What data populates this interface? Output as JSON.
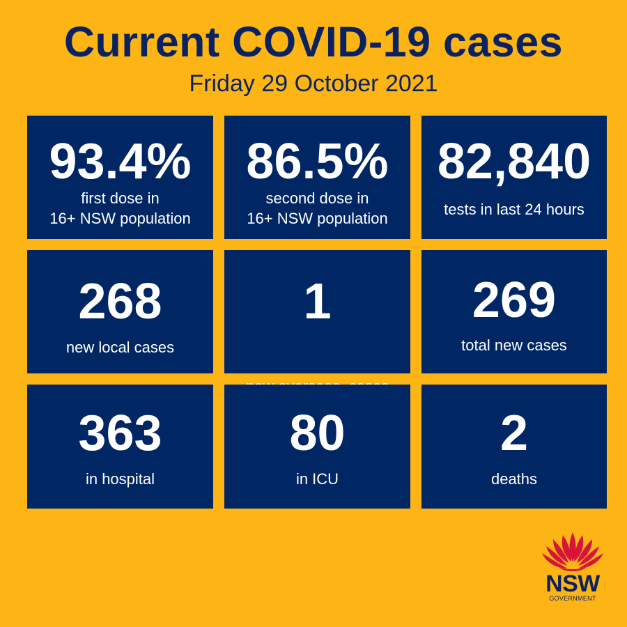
{
  "header": {
    "title": "Current COVID-19 cases",
    "date": "Friday 29 October 2021"
  },
  "colors": {
    "background": "#fdb515",
    "tile": "#002664",
    "text_dark": "#0b2261",
    "logo_red": "#d7153a"
  },
  "tiles": [
    {
      "value": "93.4%",
      "label_lines": [
        "first dose in",
        "16+ NSW population"
      ]
    },
    {
      "value": "86.5%",
      "label_lines": [
        "second dose in",
        "16+ NSW population"
      ]
    },
    {
      "value": "82,840",
      "label_lines": [
        "tests in last 24 hours"
      ]
    },
    {
      "value": "268",
      "label_lines": [
        "new local cases"
      ]
    },
    {
      "value": "1",
      "label_lines": [
        "new overseas  cases"
      ]
    },
    {
      "value": "269",
      "label_lines": [
        "total new cases"
      ]
    },
    {
      "value": "363",
      "label_lines": [
        "in hospital"
      ]
    },
    {
      "value": "80",
      "label_lines": [
        "in ICU"
      ]
    },
    {
      "value": "2",
      "label_lines": [
        "deaths"
      ]
    }
  ],
  "logo": {
    "icon": "waratah-icon",
    "word": "NSW",
    "sub": "GOVERNMENT"
  }
}
